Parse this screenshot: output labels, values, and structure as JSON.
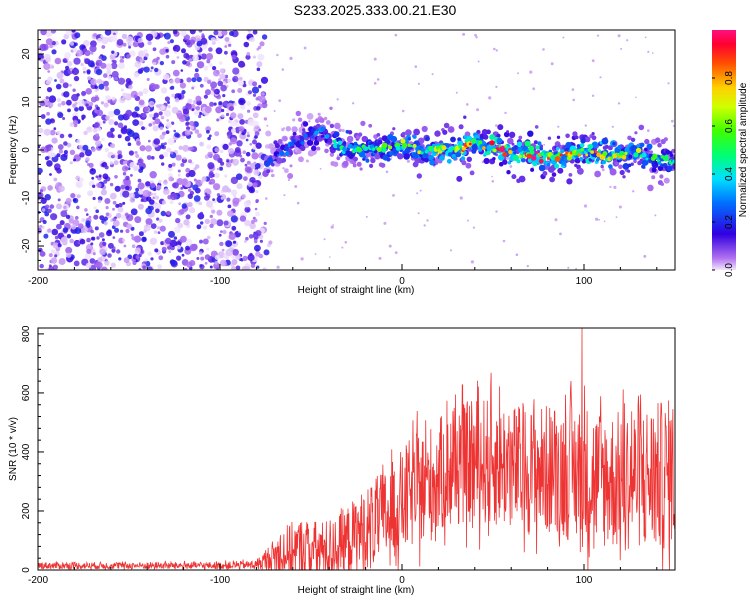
{
  "title": "S233.2025.333.00.21.E30",
  "chart_data": [
    {
      "type": "heatmap",
      "name": "spectrogram",
      "xlabel": "Height of straight line (km)",
      "ylabel": "Frequency (Hz)",
      "xlim": [
        -200,
        150
      ],
      "ylim": [
        -25,
        25
      ],
      "xticks": [
        -200,
        -100,
        0,
        100
      ],
      "yticks": [
        -20,
        -10,
        0,
        10,
        20
      ],
      "colorbar": {
        "label": "Normalized spectral amplitude",
        "range": [
          0,
          1
        ],
        "ticks": [
          0.0,
          0.2,
          0.4,
          0.6,
          0.8
        ],
        "tick_labels": [
          "0.0",
          "0.2",
          "0.4",
          "0.6",
          "0.8"
        ]
      },
      "noise_region_x": [
        -200,
        -75
      ],
      "ridge": {
        "x": [
          -75,
          -65,
          -55,
          -45,
          -40,
          -35,
          -25,
          -15,
          -5,
          0,
          10,
          20,
          30,
          40,
          50,
          60,
          70,
          80,
          90,
          100,
          110,
          120,
          130,
          140,
          150
        ],
        "freq": [
          -3,
          0,
          2,
          4,
          3,
          1,
          0,
          0,
          0.5,
          1,
          0,
          0,
          0.5,
          1.5,
          0.5,
          -0.5,
          -1,
          -1.5,
          -1,
          0,
          -1,
          -1,
          -0.5,
          -2,
          -3
        ],
        "amplitude": [
          0.2,
          0.25,
          0.3,
          0.3,
          0.35,
          0.45,
          0.5,
          0.55,
          0.55,
          0.6,
          0.65,
          0.7,
          0.75,
          0.8,
          0.85,
          0.85,
          0.95,
          0.8,
          0.75,
          0.8,
          0.7,
          0.65,
          0.6,
          0.5,
          0.4
        ]
      }
    },
    {
      "type": "line",
      "name": "snr",
      "xlabel": "Height of straight line (km)",
      "ylabel": "SNR (10 * v/v)",
      "xlim": [
        -200,
        150
      ],
      "ylim": [
        0,
        820
      ],
      "xticks": [
        -200,
        -100,
        0,
        100
      ],
      "yticks": [
        0,
        200,
        400,
        600,
        800
      ],
      "color": "#ee3333",
      "envelope": {
        "x": [
          -200,
          -150,
          -100,
          -80,
          -75,
          -65,
          -55,
          -45,
          -35,
          -25,
          -15,
          -5,
          5,
          15,
          25,
          35,
          45,
          55,
          65,
          75,
          85,
          95,
          100,
          110,
          120,
          130,
          140,
          150
        ],
        "mean": [
          15,
          15,
          15,
          18,
          30,
          60,
          70,
          65,
          80,
          120,
          160,
          200,
          260,
          290,
          340,
          360,
          370,
          360,
          340,
          340,
          340,
          330,
          320,
          310,
          300,
          320,
          310,
          330
        ],
        "spread": [
          12,
          12,
          12,
          15,
          40,
          90,
          110,
          100,
          110,
          130,
          150,
          170,
          190,
          200,
          200,
          210,
          220,
          220,
          220,
          220,
          230,
          240,
          250,
          240,
          240,
          250,
          260,
          260
        ]
      },
      "peak": {
        "x": 99,
        "y": 820
      }
    }
  ]
}
